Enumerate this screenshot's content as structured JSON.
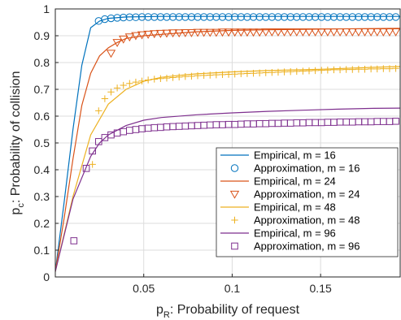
{
  "chart_data": {
    "type": "line",
    "xlabel": {
      "main": "p",
      "sub": "R",
      "rest": ": Probability of request"
    },
    "ylabel": {
      "main": "p",
      "sub": "c",
      "rest": ": Probability of collision"
    },
    "xlim": [
      0,
      0.195
    ],
    "ylim": [
      0,
      1
    ],
    "grid": true,
    "legend_position": "bottom-right",
    "xticks": [
      {
        "value": 0.05,
        "label": "0.05"
      },
      {
        "value": 0.1,
        "label": "0.1"
      },
      {
        "value": 0.15,
        "label": "0.15"
      }
    ],
    "yticks": [
      {
        "value": 0,
        "label": "0"
      },
      {
        "value": 0.1,
        "label": "0.1"
      },
      {
        "value": 0.2,
        "label": "0.2"
      },
      {
        "value": 0.3,
        "label": "0.3"
      },
      {
        "value": 0.4,
        "label": "0.4"
      },
      {
        "value": 0.5,
        "label": "0.5"
      },
      {
        "value": 0.6,
        "label": "0.6"
      },
      {
        "value": 0.7,
        "label": "0.7"
      },
      {
        "value": 0.8,
        "label": "0.8"
      },
      {
        "value": 0.9,
        "label": "0.9"
      },
      {
        "value": 1,
        "label": "1"
      }
    ],
    "series": [
      {
        "name": "Empirical, m = 16",
        "kind": "line",
        "color": "#0072BD",
        "x": [
          0,
          0.005,
          0.01,
          0.015,
          0.02,
          0.025,
          0.03,
          0.04,
          0.06,
          0.1,
          0.15,
          0.195
        ],
        "y": [
          0.02,
          0.28,
          0.55,
          0.79,
          0.93,
          0.955,
          0.965,
          0.97,
          0.972,
          0.972,
          0.972,
          0.972
        ]
      },
      {
        "name": "Approximation, m = 16",
        "kind": "marker",
        "marker": "circle",
        "color": "#0072BD",
        "x": [
          0.0245,
          0.028,
          0.0315,
          0.035,
          0.0385,
          0.042,
          0.0455,
          0.049,
          0.0525,
          0.056,
          0.0595,
          0.063,
          0.0665,
          0.07,
          0.0735,
          0.077,
          0.0805,
          0.084,
          0.0875,
          0.091,
          0.0945,
          0.098,
          0.1015,
          0.105,
          0.1085,
          0.112,
          0.1155,
          0.119,
          0.1225,
          0.126,
          0.1295,
          0.133,
          0.1365,
          0.14,
          0.1435,
          0.147,
          0.1505,
          0.154,
          0.1575,
          0.161,
          0.1645,
          0.168,
          0.1715,
          0.175,
          0.1785,
          0.182,
          0.1855,
          0.189,
          0.1925
        ],
        "y": [
          0.955,
          0.962,
          0.965,
          0.967,
          0.968,
          0.969,
          0.969,
          0.97,
          0.97,
          0.97,
          0.97,
          0.97,
          0.97,
          0.97,
          0.97,
          0.97,
          0.97,
          0.97,
          0.97,
          0.97,
          0.97,
          0.97,
          0.97,
          0.97,
          0.97,
          0.97,
          0.97,
          0.97,
          0.97,
          0.97,
          0.97,
          0.97,
          0.97,
          0.97,
          0.97,
          0.97,
          0.97,
          0.97,
          0.97,
          0.97,
          0.97,
          0.97,
          0.97,
          0.97,
          0.97,
          0.97,
          0.97,
          0.97,
          0.97
        ]
      },
      {
        "name": "Empirical, m = 24",
        "kind": "line",
        "color": "#D95319",
        "x": [
          0,
          0.005,
          0.01,
          0.015,
          0.02,
          0.025,
          0.03,
          0.035,
          0.04,
          0.05,
          0.06,
          0.08,
          0.1,
          0.12,
          0.15,
          0.195
        ],
        "y": [
          0.02,
          0.22,
          0.44,
          0.64,
          0.76,
          0.825,
          0.855,
          0.875,
          0.89,
          0.9,
          0.905,
          0.915,
          0.92,
          0.922,
          0.925,
          0.928
        ]
      },
      {
        "name": "Approximation, m = 24",
        "kind": "marker",
        "marker": "triangle-down",
        "color": "#D95319",
        "x": [
          0.0315,
          0.035,
          0.0385,
          0.042,
          0.0455,
          0.049,
          0.0525,
          0.056,
          0.0595,
          0.063,
          0.0665,
          0.07,
          0.0735,
          0.077,
          0.0805,
          0.084,
          0.0875,
          0.091,
          0.0945,
          0.098,
          0.1015,
          0.105,
          0.1085,
          0.112,
          0.1155,
          0.119,
          0.1225,
          0.126,
          0.1295,
          0.133,
          0.1365,
          0.14,
          0.1435,
          0.147,
          0.1505,
          0.154,
          0.1575,
          0.161,
          0.1645,
          0.168,
          0.1715,
          0.175,
          0.1785,
          0.182,
          0.1855,
          0.189,
          0.1925
        ],
        "y": [
          0.835,
          0.875,
          0.888,
          0.896,
          0.901,
          0.904,
          0.906,
          0.908,
          0.909,
          0.91,
          0.911,
          0.911,
          0.912,
          0.912,
          0.913,
          0.913,
          0.913,
          0.913,
          0.914,
          0.914,
          0.914,
          0.914,
          0.914,
          0.914,
          0.914,
          0.915,
          0.915,
          0.915,
          0.915,
          0.915,
          0.915,
          0.915,
          0.915,
          0.915,
          0.915,
          0.915,
          0.915,
          0.915,
          0.915,
          0.915,
          0.915,
          0.915,
          0.915,
          0.915,
          0.915,
          0.915,
          0.915
        ]
      },
      {
        "name": "Empirical, m = 48",
        "kind": "line",
        "color": "#EDB120",
        "x": [
          0,
          0.01,
          0.02,
          0.03,
          0.04,
          0.05,
          0.06,
          0.07,
          0.08,
          0.1,
          0.12,
          0.15,
          0.18,
          0.195
        ],
        "y": [
          0.02,
          0.3,
          0.53,
          0.645,
          0.7,
          0.73,
          0.745,
          0.752,
          0.758,
          0.765,
          0.77,
          0.775,
          0.782,
          0.785
        ]
      },
      {
        "name": "Approximation, m = 48",
        "kind": "marker",
        "marker": "plus",
        "color": "#EDB120",
        "x": [
          0.021,
          0.0245,
          0.028,
          0.0315,
          0.035,
          0.0385,
          0.042,
          0.0455,
          0.049,
          0.0525,
          0.056,
          0.0595,
          0.063,
          0.0665,
          0.07,
          0.0735,
          0.077,
          0.0805,
          0.084,
          0.0875,
          0.091,
          0.0945,
          0.098,
          0.1015,
          0.105,
          0.1085,
          0.112,
          0.1155,
          0.119,
          0.1225,
          0.126,
          0.1295,
          0.133,
          0.1365,
          0.14,
          0.1435,
          0.147,
          0.1505,
          0.154,
          0.1575,
          0.161,
          0.1645,
          0.168,
          0.1715,
          0.175,
          0.1785,
          0.182,
          0.1855,
          0.189,
          0.1925
        ],
        "y": [
          0.42,
          0.62,
          0.665,
          0.69,
          0.705,
          0.715,
          0.722,
          0.727,
          0.731,
          0.735,
          0.738,
          0.74,
          0.742,
          0.744,
          0.746,
          0.748,
          0.749,
          0.751,
          0.752,
          0.753,
          0.754,
          0.755,
          0.756,
          0.757,
          0.758,
          0.759,
          0.76,
          0.761,
          0.762,
          0.763,
          0.764,
          0.765,
          0.766,
          0.767,
          0.768,
          0.769,
          0.77,
          0.771,
          0.772,
          0.773,
          0.773,
          0.774,
          0.774,
          0.775,
          0.775,
          0.776,
          0.776,
          0.777,
          0.777,
          0.778
        ]
      },
      {
        "name": "Empirical, m = 96",
        "kind": "line",
        "color": "#7E2F8E",
        "x": [
          0,
          0.01,
          0.02,
          0.025,
          0.03,
          0.04,
          0.05,
          0.06,
          0.08,
          0.1,
          0.12,
          0.14,
          0.16,
          0.18,
          0.195
        ],
        "y": [
          0.02,
          0.29,
          0.45,
          0.5,
          0.53,
          0.565,
          0.585,
          0.595,
          0.605,
          0.612,
          0.618,
          0.622,
          0.626,
          0.629,
          0.63
        ]
      },
      {
        "name": "Approximation, m = 96",
        "kind": "marker",
        "marker": "square",
        "color": "#7E2F8E",
        "x": [
          0.0105,
          0.0175,
          0.021,
          0.0245,
          0.028,
          0.0315,
          0.035,
          0.0385,
          0.042,
          0.0455,
          0.049,
          0.0525,
          0.056,
          0.0595,
          0.063,
          0.0665,
          0.07,
          0.0735,
          0.077,
          0.0805,
          0.084,
          0.0875,
          0.091,
          0.0945,
          0.098,
          0.1015,
          0.105,
          0.1085,
          0.112,
          0.1155,
          0.119,
          0.1225,
          0.126,
          0.1295,
          0.133,
          0.1365,
          0.14,
          0.1435,
          0.147,
          0.1505,
          0.154,
          0.1575,
          0.161,
          0.1645,
          0.168,
          0.1715,
          0.175,
          0.1785,
          0.182,
          0.1855,
          0.189,
          0.1925
        ],
        "y": [
          0.135,
          0.405,
          0.47,
          0.505,
          0.52,
          0.53,
          0.537,
          0.542,
          0.547,
          0.55,
          0.553,
          0.555,
          0.557,
          0.558,
          0.56,
          0.561,
          0.562,
          0.563,
          0.564,
          0.565,
          0.566,
          0.567,
          0.568,
          0.568,
          0.569,
          0.569,
          0.57,
          0.571,
          0.571,
          0.572,
          0.572,
          0.573,
          0.573,
          0.574,
          0.574,
          0.575,
          0.575,
          0.576,
          0.576,
          0.576,
          0.577,
          0.577,
          0.578,
          0.578,
          0.578,
          0.579,
          0.579,
          0.579,
          0.58,
          0.58,
          0.58,
          0.581
        ]
      }
    ]
  }
}
